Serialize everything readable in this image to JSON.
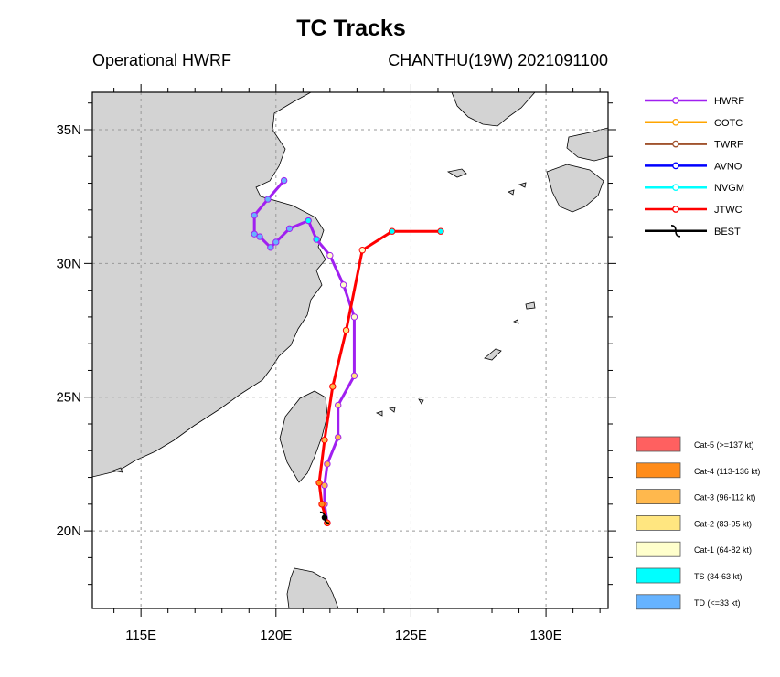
{
  "chart_data": {
    "type": "map-tracks",
    "title": "TC Tracks",
    "subtitle_left": "Operational HWRF",
    "subtitle_right": "CHANTHU(19W) 2021091100",
    "x_axis": {
      "range": [
        113.2,
        132.3
      ],
      "ticks": [
        115,
        120,
        125,
        130
      ],
      "tick_labels": [
        "115E",
        "120E",
        "125E",
        "130E"
      ]
    },
    "y_axis": {
      "range": [
        17.1,
        36.4
      ],
      "ticks": [
        20,
        25,
        30,
        35
      ],
      "tick_labels": [
        "20N",
        "25N",
        "30N",
        "35N"
      ]
    },
    "grid": true,
    "legend_tracks": [
      {
        "name": "HWRF",
        "color": "#a020f0"
      },
      {
        "name": "COTC",
        "color": "#ffa500"
      },
      {
        "name": "TWRF",
        "color": "#a0522d"
      },
      {
        "name": "AVNO",
        "color": "#0000ff"
      },
      {
        "name": "NVGM",
        "color": "#00ffff"
      },
      {
        "name": "JTWC",
        "color": "#ff0000"
      },
      {
        "name": "BEST",
        "color": "#000000"
      }
    ],
    "legend_intensity": [
      {
        "label": "Cat-5 (>=137 kt)",
        "color": "#ff6060"
      },
      {
        "label": "Cat-4 (113-136 kt)",
        "color": "#ff8c1a"
      },
      {
        "label": "Cat-3 (96-112 kt)",
        "color": "#ffb84d"
      },
      {
        "label": "Cat-2 (83-95 kt)",
        "color": "#ffe680"
      },
      {
        "label": "Cat-1 (64-82 kt)",
        "color": "#ffffcc"
      },
      {
        "label": "TS (34-63 kt)",
        "color": "#00ffff"
      },
      {
        "label": "TD (<=33 kt)",
        "color": "#66b3ff"
      }
    ],
    "series": [
      {
        "name": "HWRF",
        "color": "#a020f0",
        "points": [
          {
            "lon": 121.9,
            "lat": 20.3,
            "cat": "Cat-3"
          },
          {
            "lon": 121.8,
            "lat": 21.0,
            "cat": "Cat-3"
          },
          {
            "lon": 121.8,
            "lat": 21.7,
            "cat": "Cat-3"
          },
          {
            "lon": 121.9,
            "lat": 22.5,
            "cat": "Cat-3"
          },
          {
            "lon": 122.3,
            "lat": 23.5,
            "cat": "Cat-3"
          },
          {
            "lon": 122.3,
            "lat": 24.7,
            "cat": "Cat-2"
          },
          {
            "lon": 122.9,
            "lat": 25.8,
            "cat": "Cat-2"
          },
          {
            "lon": 122.9,
            "lat": 28.0,
            "cat": "Cat-1"
          },
          {
            "lon": 122.5,
            "lat": 29.2,
            "cat": "Cat-1"
          },
          {
            "lon": 122.0,
            "lat": 30.3,
            "cat": "Cat-1"
          },
          {
            "lon": 121.5,
            "lat": 30.9,
            "cat": "TS"
          },
          {
            "lon": 121.2,
            "lat": 31.6,
            "cat": "TS"
          },
          {
            "lon": 120.5,
            "lat": 31.3,
            "cat": "TD"
          },
          {
            "lon": 120.0,
            "lat": 30.8,
            "cat": "TD"
          },
          {
            "lon": 119.8,
            "lat": 30.6,
            "cat": "TD"
          },
          {
            "lon": 119.4,
            "lat": 31.0,
            "cat": "TD"
          },
          {
            "lon": 119.2,
            "lat": 31.1,
            "cat": "TD"
          },
          {
            "lon": 119.2,
            "lat": 31.8,
            "cat": "TD"
          },
          {
            "lon": 119.7,
            "lat": 32.4,
            "cat": "TD"
          },
          {
            "lon": 120.3,
            "lat": 33.1,
            "cat": "TD"
          }
        ]
      },
      {
        "name": "JTWC",
        "color": "#ff0000",
        "points": [
          {
            "lon": 121.9,
            "lat": 20.3,
            "cat": "Cat-4"
          },
          {
            "lon": 121.7,
            "lat": 21.0,
            "cat": "Cat-4"
          },
          {
            "lon": 121.6,
            "lat": 21.8,
            "cat": "Cat-4"
          },
          {
            "lon": 121.8,
            "lat": 23.4,
            "cat": "Cat-3"
          },
          {
            "lon": 122.1,
            "lat": 25.4,
            "cat": "Cat-3"
          },
          {
            "lon": 122.6,
            "lat": 27.5,
            "cat": "Cat-2"
          },
          {
            "lon": 123.2,
            "lat": 30.5,
            "cat": "Cat-1"
          },
          {
            "lon": 124.3,
            "lat": 31.2,
            "cat": "TS"
          },
          {
            "lon": 126.1,
            "lat": 31.2,
            "cat": "TS"
          }
        ]
      },
      {
        "name": "BEST",
        "color": "#000000",
        "points": [
          {
            "lon": 121.8,
            "lat": 20.5,
            "cat": "Cat-4"
          }
        ]
      }
    ]
  }
}
